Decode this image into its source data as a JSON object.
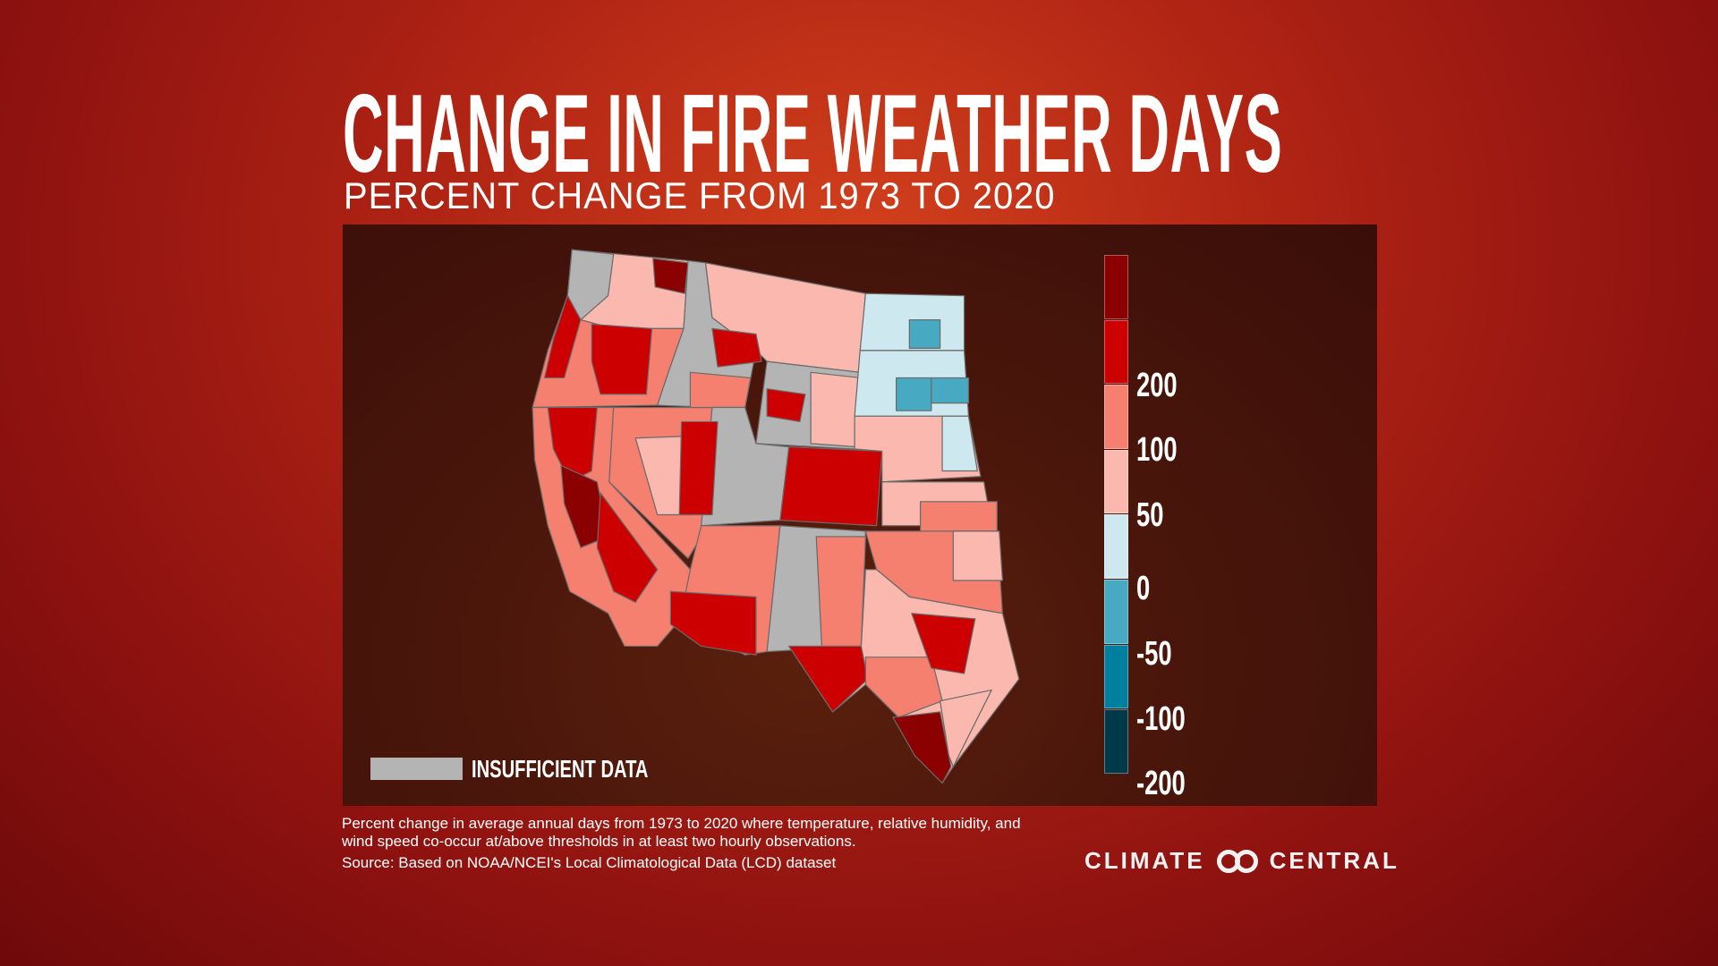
{
  "title": "CHANGE IN FIRE WEATHER DAYS",
  "subtitle": "PERCENT CHANGE FROM 1973 TO 2020",
  "chart_data": {
    "type": "choropleth map",
    "region": "Western and Central United States (climate divisions)",
    "legend": {
      "bins": [
        {
          "label": "",
          "color": "#8b0000"
        },
        {
          "label": "200",
          "color": "#cc0000"
        },
        {
          "label": "100",
          "color": "#f58070"
        },
        {
          "label": "50",
          "color": "#fbb8ae"
        },
        {
          "label": "0",
          "color": "#cde8ee"
        },
        {
          "label": "-50",
          "color": "#47a9c2"
        },
        {
          "label": "-100",
          "color": "#00809e"
        },
        {
          "label": "-200",
          "color": "#003a48"
        }
      ],
      "insufficient_data": {
        "label": "INSUFFICIENT DATA",
        "color": "#b4b4b4"
      }
    }
  },
  "footnote": {
    "line1": "Percent change in average annual days from 1973 to 2020 where temperature, relative humidity, and",
    "line2": "wind speed co-occur at/above thresholds in at least two hourly observations.",
    "source": "Source: Based on NOAA/NCEI's Local Climatological Data (LCD) dataset"
  },
  "logo": {
    "left": "CLIMATE",
    "right": "CENTRAL"
  }
}
